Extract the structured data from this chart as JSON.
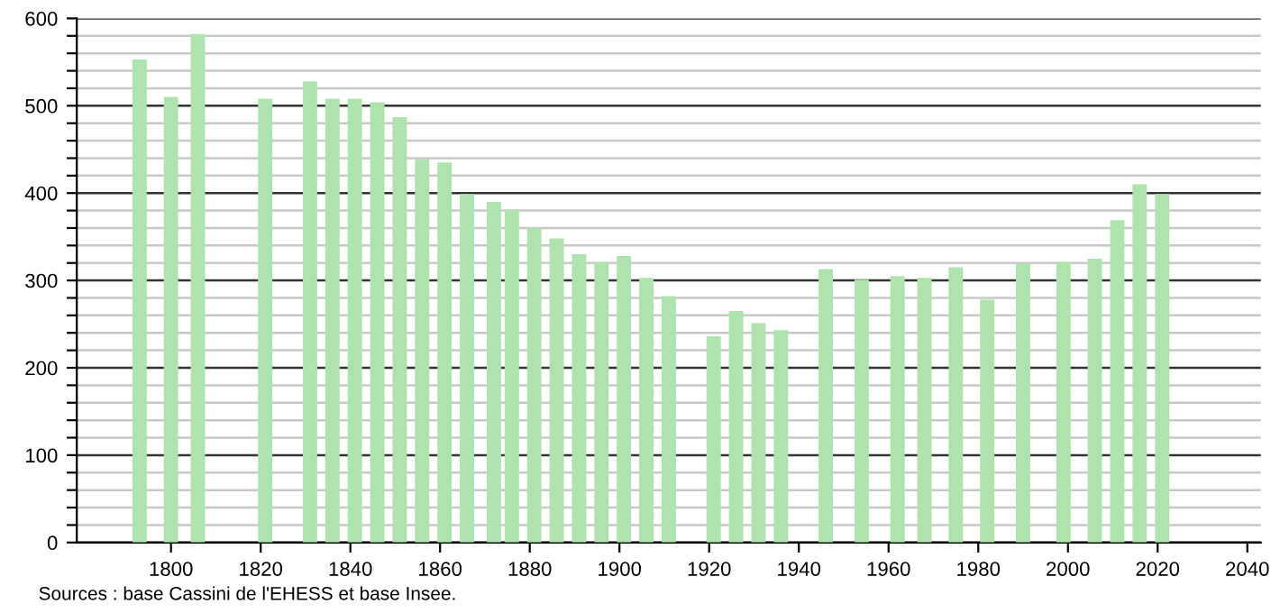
{
  "chart_data": {
    "type": "bar",
    "color": "#aee3ae",
    "x": [
      1793,
      1800,
      1806,
      1821,
      1831,
      1836,
      1841,
      1846,
      1851,
      1856,
      1861,
      1866,
      1872,
      1876,
      1881,
      1886,
      1891,
      1896,
      1901,
      1906,
      1911,
      1921,
      1926,
      1931,
      1936,
      1946,
      1954,
      1962,
      1968,
      1975,
      1982,
      1990,
      1999,
      2006,
      2011,
      2016,
      2021
    ],
    "values": [
      553,
      510,
      582,
      508,
      528,
      508,
      508,
      504,
      487,
      439,
      435,
      399,
      390,
      381,
      360,
      348,
      330,
      321,
      328,
      303,
      282,
      236,
      265,
      251,
      243,
      313,
      301,
      305,
      303,
      315,
      278,
      319,
      321,
      325,
      369,
      410,
      399
    ],
    "xlim": [
      1779,
      2043
    ],
    "xticks": [
      1800,
      1820,
      1840,
      1860,
      1880,
      1900,
      1920,
      1940,
      1960,
      1980,
      2000,
      2020,
      2040
    ],
    "ylim": [
      0,
      600
    ],
    "yticks": [
      0,
      {
        "value": 20,
        "label": null
      },
      {
        "value": 40,
        "label": null
      },
      {
        "value": 60,
        "label": null
      },
      {
        "value": 80,
        "label": null
      },
      100,
      {
        "value": 120,
        "label": null
      },
      {
        "value": 140,
        "label": null
      },
      {
        "value": 160,
        "label": null
      },
      {
        "value": 180,
        "label": null
      },
      200,
      {
        "value": 220,
        "label": null
      },
      {
        "value": 240,
        "label": null
      },
      {
        "value": 260,
        "label": null
      },
      {
        "value": 280,
        "label": null
      },
      300,
      {
        "value": 320,
        "label": null
      },
      {
        "value": 340,
        "label": null
      },
      {
        "value": 360,
        "label": null
      },
      {
        "value": 380,
        "label": null
      },
      400,
      {
        "value": 420,
        "label": null
      },
      {
        "value": 440,
        "label": null
      },
      {
        "value": 460,
        "label": null
      },
      {
        "value": 480,
        "label": null
      },
      500,
      {
        "value": 520,
        "label": null
      },
      {
        "value": 540,
        "label": null
      },
      {
        "value": 560,
        "label": null
      },
      {
        "value": 580,
        "label": null
      },
      600
    ],
    "grid": "y",
    "annotations": [
      "Sources : base Cassini de l'EHESS et base Insee."
    ]
  }
}
